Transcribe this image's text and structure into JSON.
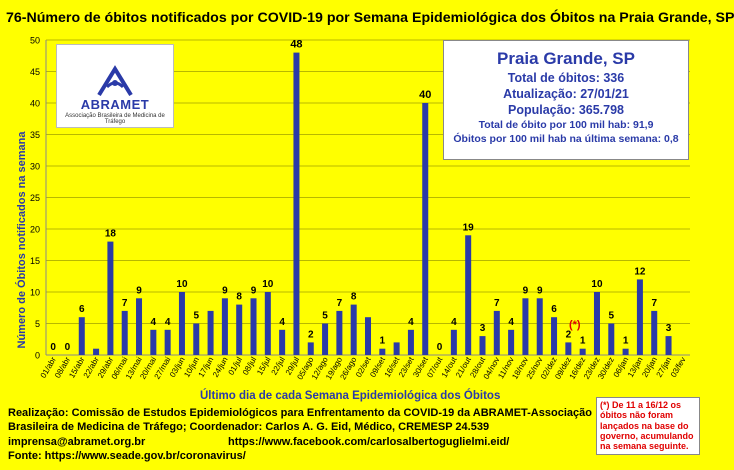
{
  "title": "76-Número de óbitos notificados por COVID-19 por Semana Epidemiológica dos Óbitos na Praia Grande, SP",
  "logo": {
    "name": "ABRAMET",
    "subtitle": "Associação Brasileira de Medicina de Tráfego"
  },
  "info": {
    "city": "Praia Grande, SP",
    "total": "Total de óbitos: 336",
    "update": "Atualização: 27/01/21",
    "population": "População: 365.798",
    "rate": "Total de óbito por 100 mil hab: 91,9",
    "rate_last_week": "Óbitos por 100 mil hab na última semana: 0,8"
  },
  "asterisk_marker": "(*)",
  "note": "(*) De 11 a 16/12 os óbitos não foram lançados na base do governo, acumulando na semana seguinte.",
  "footer": {
    "line1": "Realização: Comissão de Estudos Epidemiológicos para Enfrentamento da COVID-19 da ABRAMET-Associação",
    "line2": "Brasileira de Medicina de Tráfego; Coordenador: Carlos A. G. Eid, Médico, CREMESP 24.539",
    "email": "imprensa@abramet.org.br",
    "facebook": "https://www.facebook.com/carlosalbertoguglielmi.eid/",
    "source": "Fonte: https://www.seade.gov.br/coronavirus/"
  },
  "colors": {
    "background": "#ffff00",
    "bar": "#2a3aa8",
    "text_blue": "#2a3aa8",
    "note_red": "#e00000"
  },
  "chart_data": {
    "type": "bar",
    "title": "76-Número de óbitos notificados por COVID-19 por Semana Epidemiológica dos Óbitos na Praia Grande, SP",
    "xlabel": "Último dia de cada Semana Epidemiológica dos Óbitos",
    "ylabel": "Número de Óbitos notificados na semana",
    "ylim": [
      0,
      50
    ],
    "yticks": [
      0,
      5,
      10,
      15,
      20,
      25,
      30,
      35,
      40,
      45,
      50
    ],
    "grid": true,
    "categories": [
      "01/abr",
      "08/abr",
      "15/abr",
      "22/abr",
      "29/abr",
      "06/mai",
      "13/mai",
      "20/mai",
      "27/mai",
      "03/jun",
      "10/jun",
      "17/jun",
      "24/jun",
      "01/jul",
      "08/jul",
      "15/jul",
      "22/jul",
      "29/jul",
      "05/ago",
      "12/ago",
      "19/ago",
      "26/ago",
      "02/set",
      "09/set",
      "16/set",
      "23/set",
      "30/set",
      "07/out",
      "14/out",
      "21/out",
      "28/out",
      "04/nov",
      "11/nov",
      "18/nov",
      "25/nov",
      "02/dez",
      "09/dez",
      "16/dez",
      "23/dez",
      "30/dez",
      "06/jan",
      "13/jan",
      "20/jan",
      "27/jan",
      "03/fev"
    ],
    "values": [
      0,
      0,
      6,
      1,
      18,
      7,
      9,
      4,
      4,
      10,
      5,
      7,
      9,
      8,
      9,
      10,
      4,
      48,
      2,
      5,
      7,
      8,
      6,
      1,
      2,
      4,
      40,
      0,
      4,
      19,
      3,
      7,
      4,
      9,
      9,
      6,
      2,
      1,
      10,
      5,
      1,
      12,
      7,
      3,
      null
    ],
    "data_labels": [
      "0",
      "0",
      "6",
      "",
      "18",
      "7",
      "9",
      "4",
      "4",
      "10",
      "5",
      "",
      "9",
      "8",
      "9",
      "10",
      "4",
      "48",
      "2",
      "5",
      "7",
      "8",
      "",
      "1",
      "",
      "4",
      "40",
      "0",
      "4",
      "19",
      "3",
      "7",
      "4",
      "9",
      "9",
      "6",
      "2",
      "1",
      "10",
      "5",
      "1",
      "12",
      "7",
      "3",
      ""
    ]
  }
}
